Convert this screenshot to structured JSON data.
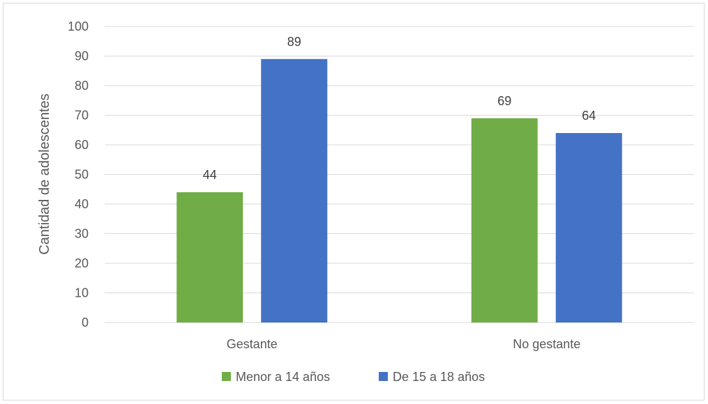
{
  "chart_data": {
    "type": "bar",
    "title": "",
    "xlabel": "",
    "ylabel": "Cantidad de adolescentes",
    "categories": [
      "Gestante",
      "No gestante"
    ],
    "series": [
      {
        "name": "Menor a 14 años",
        "values": [
          44,
          69
        ],
        "color": "#70ad47"
      },
      {
        "name": "De 15 a 18 años",
        "values": [
          89,
          64
        ],
        "color": "#4472c4"
      }
    ],
    "ylim": [
      0,
      100
    ],
    "yticks": [
      0,
      10,
      20,
      30,
      40,
      50,
      60,
      70,
      80,
      90,
      100
    ],
    "grid": true,
    "gridColor": "#d9d9d9",
    "legend_position": "bottom",
    "data_labels": true
  }
}
